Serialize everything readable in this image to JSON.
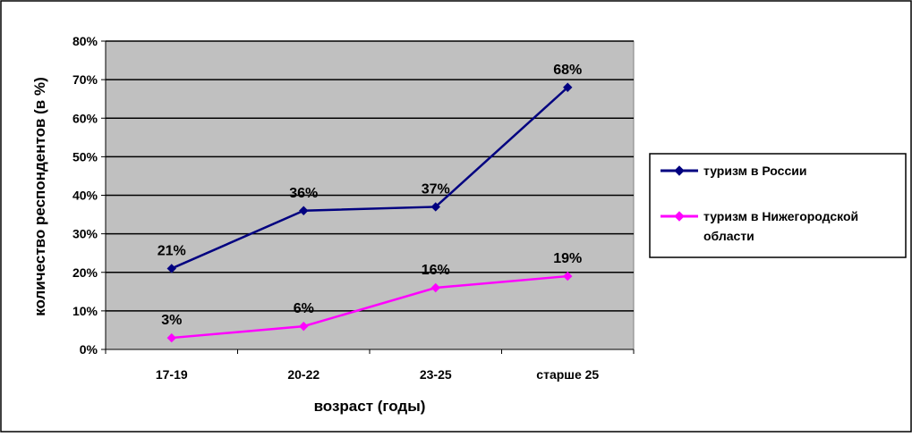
{
  "chart_data": {
    "type": "line",
    "title": "",
    "xlabel": "возраст (годы)",
    "ylabel": "количество респондентов (в %)",
    "categories": [
      "17-19",
      "20-22",
      "23-25",
      "старше 25"
    ],
    "ylim": [
      0,
      80
    ],
    "yticks": [
      0,
      10,
      20,
      30,
      40,
      50,
      60,
      70,
      80
    ],
    "ytick_labels": [
      "0%",
      "10%",
      "20%",
      "30%",
      "40%",
      "50%",
      "60%",
      "70%",
      "80%"
    ],
    "grid": true,
    "plot_background": "#c0c0c0",
    "legend_position": "right",
    "series": [
      {
        "name": "туризм в России",
        "values": [
          21,
          36,
          37,
          68
        ],
        "labels": [
          "21%",
          "36%",
          "37%",
          "68%"
        ],
        "color": "#000080",
        "marker": "diamond"
      },
      {
        "name": "туризм в Нижегородской области",
        "name_lines": [
          "туризм в Нижегородской",
          "области"
        ],
        "values": [
          3,
          6,
          16,
          19
        ],
        "labels": [
          "3%",
          "6%",
          "16%",
          "19%"
        ],
        "color": "#ff00ff",
        "marker": "diamond"
      }
    ]
  }
}
